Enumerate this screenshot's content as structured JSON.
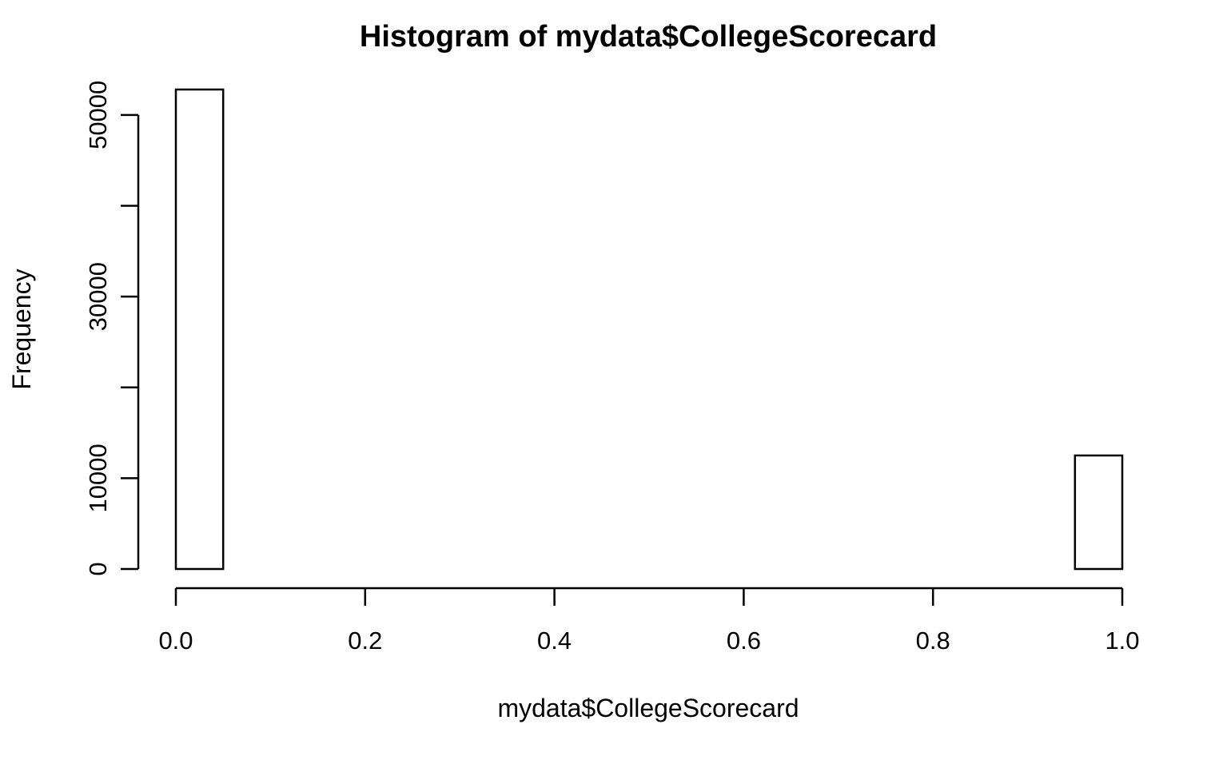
{
  "chart_data": {
    "type": "bar",
    "title": "Histogram of mydata$CollegeScorecard",
    "xlabel": "mydata$CollegeScorecard",
    "ylabel": "Frequency",
    "xlim": [
      0,
      1
    ],
    "ylim": [
      0,
      52800
    ],
    "x_ticks": [
      0.0,
      0.2,
      0.4,
      0.6,
      0.8,
      1.0
    ],
    "x_tick_labels": [
      "0.0",
      "0.2",
      "0.4",
      "0.6",
      "0.8",
      "1.0"
    ],
    "y_ticks": [
      0,
      10000,
      20000,
      30000,
      40000,
      50000
    ],
    "y_tick_labels": [
      "0",
      "10000",
      "",
      "30000",
      "",
      "50000"
    ],
    "bin_edges": [
      0.0,
      0.05,
      0.1,
      0.15,
      0.2,
      0.25,
      0.3,
      0.35,
      0.4,
      0.45,
      0.5,
      0.55,
      0.6,
      0.65,
      0.7,
      0.75,
      0.8,
      0.85,
      0.9,
      0.95,
      1.0
    ],
    "values": [
      52800,
      0,
      0,
      0,
      0,
      0,
      0,
      0,
      0,
      0,
      0,
      0,
      0,
      0,
      0,
      0,
      0,
      0,
      0,
      12500
    ],
    "grid": false,
    "legend": "none"
  }
}
